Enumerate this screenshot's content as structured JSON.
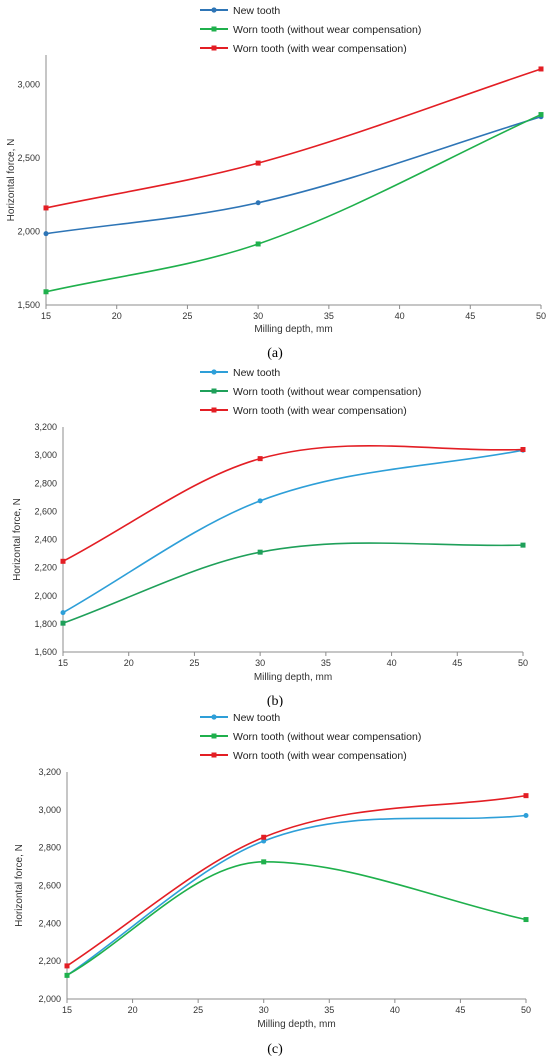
{
  "chart_data": [
    {
      "type": "line",
      "caption": "(a)",
      "xlabel": "Milling depth, mm",
      "ylabel": "Horizontal force, N",
      "xlim": [
        15,
        50
      ],
      "ylim": [
        1500,
        3200
      ],
      "xticks": [
        15,
        20,
        25,
        30,
        35,
        40,
        45,
        50
      ],
      "xtick_labels": [
        "15",
        "20",
        "25",
        "30",
        "35",
        "40",
        "45",
        "50"
      ],
      "yticks": [
        1500,
        2000,
        2500,
        3000
      ],
      "ytick_labels": [
        "1,500",
        "2,000",
        "2,500",
        "3,000"
      ],
      "grid": false,
      "legend_position": "top",
      "x": [
        15,
        30,
        50
      ],
      "series": [
        {
          "name": "New tooth",
          "values": [
            1985,
            2195,
            2780
          ],
          "color": "#2e75b6",
          "marker": "circle"
        },
        {
          "name": "Worn tooth (without wear compensation)",
          "values": [
            1590,
            1915,
            2795
          ],
          "color": "#1fb04c",
          "marker": "square"
        },
        {
          "name": "Worn tooth (with wear compensation)",
          "values": [
            2160,
            2465,
            3105
          ],
          "color": "#e31e24",
          "marker": "square"
        }
      ]
    },
    {
      "type": "line",
      "caption": "(b)",
      "xlabel": "Milling depth, mm",
      "ylabel": "Horizontal force, N",
      "xlim": [
        15,
        50
      ],
      "ylim": [
        1600,
        3200
      ],
      "xticks": [
        15,
        20,
        25,
        30,
        35,
        40,
        45,
        50
      ],
      "xtick_labels": [
        "15",
        "20",
        "25",
        "30",
        "35",
        "40",
        "45",
        "50"
      ],
      "yticks": [
        1600,
        1800,
        2000,
        2200,
        2400,
        2600,
        2800,
        3000,
        3200
      ],
      "ytick_labels": [
        "1,600",
        "1,800",
        "2,000",
        "2,200",
        "2,400",
        "2,600",
        "2,800",
        "3,000",
        "3,200"
      ],
      "grid": false,
      "legend_position": "top",
      "x": [
        15,
        30,
        50
      ],
      "series": [
        {
          "name": "New tooth",
          "values": [
            1880,
            2675,
            3035
          ],
          "color": "#2e9fd8",
          "marker": "circle"
        },
        {
          "name": "Worn tooth (without wear compensation)",
          "values": [
            1805,
            2310,
            2360
          ],
          "color": "#1fa05a",
          "marker": "square"
        },
        {
          "name": "Worn tooth (with wear compensation)",
          "values": [
            2245,
            2975,
            3040
          ],
          "color": "#e31e24",
          "marker": "square"
        }
      ]
    },
    {
      "type": "line",
      "caption": "(c)",
      "xlabel": "Milling depth, mm",
      "ylabel": "Horizontal force, N",
      "xlim": [
        15,
        50
      ],
      "ylim": [
        2000,
        3200
      ],
      "xticks": [
        15,
        20,
        25,
        30,
        35,
        40,
        45,
        50
      ],
      "xtick_labels": [
        "15",
        "20",
        "25",
        "30",
        "35",
        "40",
        "45",
        "50"
      ],
      "yticks": [
        2000,
        2200,
        2400,
        2600,
        2800,
        3000,
        3200
      ],
      "ytick_labels": [
        "2,000",
        "2,200",
        "2,400",
        "2,600",
        "2,800",
        "3,000",
        "3,200"
      ],
      "grid": false,
      "legend_position": "top",
      "x": [
        15,
        30,
        50
      ],
      "series": [
        {
          "name": "New tooth",
          "values": [
            2125,
            2835,
            2970
          ],
          "color": "#2e9fd8",
          "marker": "circle"
        },
        {
          "name": "Worn tooth (without wear compensation)",
          "values": [
            2125,
            2725,
            2420
          ],
          "color": "#1fb04c",
          "marker": "square"
        },
        {
          "name": "Worn tooth (with wear compensation)",
          "values": [
            2175,
            2855,
            3075
          ],
          "color": "#e31e24",
          "marker": "square"
        }
      ]
    }
  ]
}
